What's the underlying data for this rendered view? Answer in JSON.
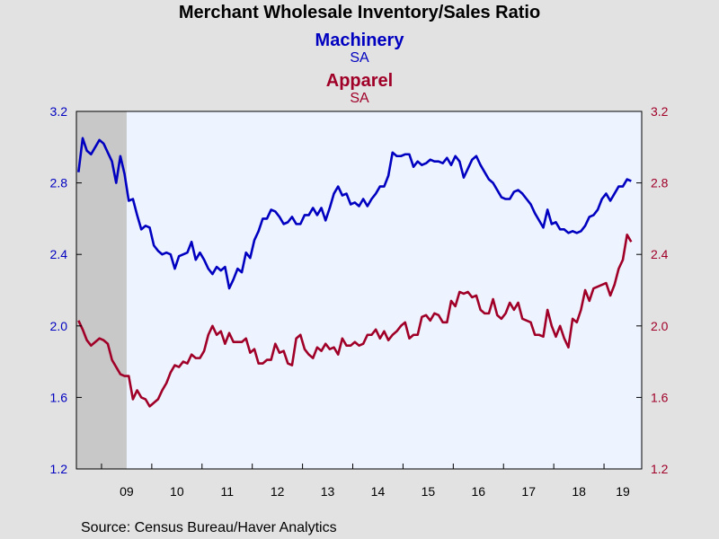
{
  "chart_data": {
    "type": "line",
    "title": "Merchant Wholesale Inventory/Sales Ratio",
    "series": [
      {
        "name": "Machinery",
        "subtitle": "SA",
        "color": "#0000c0",
        "axis": "left",
        "start": "2008-07",
        "values": [
          2.86,
          3.05,
          2.98,
          2.96,
          3.0,
          3.04,
          3.02,
          2.97,
          2.92,
          2.8,
          2.95,
          2.85,
          2.7,
          2.71,
          2.62,
          2.54,
          2.56,
          2.55,
          2.45,
          2.42,
          2.4,
          2.41,
          2.4,
          2.32,
          2.39,
          2.4,
          2.41,
          2.47,
          2.37,
          2.41,
          2.37,
          2.32,
          2.29,
          2.33,
          2.31,
          2.33,
          2.21,
          2.26,
          2.32,
          2.3,
          2.41,
          2.38,
          2.48,
          2.53,
          2.6,
          2.6,
          2.65,
          2.64,
          2.61,
          2.57,
          2.58,
          2.61,
          2.57,
          2.57,
          2.62,
          2.62,
          2.66,
          2.62,
          2.66,
          2.59,
          2.66,
          2.74,
          2.78,
          2.73,
          2.74,
          2.68,
          2.69,
          2.67,
          2.71,
          2.67,
          2.71,
          2.74,
          2.78,
          2.78,
          2.84,
          2.97,
          2.95,
          2.95,
          2.96,
          2.96,
          2.89,
          2.92,
          2.9,
          2.91,
          2.93,
          2.92,
          2.92,
          2.91,
          2.94,
          2.9,
          2.95,
          2.92,
          2.83,
          2.88,
          2.93,
          2.95,
          2.9,
          2.86,
          2.82,
          2.8,
          2.76,
          2.72,
          2.71,
          2.71,
          2.75,
          2.76,
          2.74,
          2.71,
          2.68,
          2.63,
          2.59,
          2.55,
          2.65,
          2.57,
          2.58,
          2.54,
          2.54,
          2.52,
          2.53,
          2.52,
          2.53,
          2.56,
          2.61,
          2.62,
          2.65,
          2.71,
          2.74,
          2.7,
          2.74,
          2.78,
          2.78,
          2.82,
          2.81
        ]
      },
      {
        "name": "Apparel",
        "subtitle": "SA",
        "color": "#a00028",
        "axis": "right",
        "start": "2008-07",
        "values": [
          2.03,
          1.98,
          1.92,
          1.89,
          1.91,
          1.93,
          1.92,
          1.9,
          1.81,
          1.77,
          1.73,
          1.72,
          1.72,
          1.59,
          1.64,
          1.6,
          1.59,
          1.55,
          1.57,
          1.59,
          1.64,
          1.68,
          1.74,
          1.78,
          1.77,
          1.8,
          1.79,
          1.84,
          1.82,
          1.82,
          1.86,
          1.95,
          2.0,
          1.95,
          1.97,
          1.9,
          1.96,
          1.91,
          1.91,
          1.91,
          1.93,
          1.85,
          1.87,
          1.79,
          1.79,
          1.81,
          1.81,
          1.9,
          1.85,
          1.86,
          1.79,
          1.78,
          1.93,
          1.95,
          1.87,
          1.84,
          1.82,
          1.88,
          1.86,
          1.9,
          1.87,
          1.88,
          1.84,
          1.93,
          1.89,
          1.89,
          1.91,
          1.89,
          1.9,
          1.95,
          1.95,
          1.98,
          1.93,
          1.97,
          1.92,
          1.95,
          1.97,
          2.0,
          2.02,
          1.93,
          1.95,
          1.95,
          2.05,
          2.06,
          2.03,
          2.07,
          2.06,
          2.02,
          2.02,
          2.14,
          2.11,
          2.19,
          2.18,
          2.19,
          2.16,
          2.17,
          2.09,
          2.07,
          2.07,
          2.15,
          2.06,
          2.04,
          2.07,
          2.13,
          2.09,
          2.13,
          2.04,
          2.03,
          2.02,
          1.95,
          1.95,
          1.94,
          2.09,
          2.0,
          1.94,
          2.0,
          1.93,
          1.88,
          2.04,
          2.02,
          2.09,
          2.2,
          2.14,
          2.21,
          2.22,
          2.23,
          2.24,
          2.17,
          2.23,
          2.32,
          2.37,
          2.51,
          2.47
        ]
      }
    ],
    "y_left": {
      "min": 1.2,
      "max": 3.2,
      "ticks": [
        "1.2",
        "1.6",
        "2.0",
        "2.4",
        "2.8",
        "3.2"
      ]
    },
    "y_right": {
      "min": 1.2,
      "max": 3.2,
      "ticks": [
        "1.2",
        "1.6",
        "2.0",
        "2.4",
        "2.8",
        "3.2"
      ]
    },
    "x_axis": {
      "start": "2008-07",
      "end": "2019-09",
      "year_labels": [
        "09",
        "10",
        "11",
        "12",
        "13",
        "14",
        "15",
        "16",
        "17",
        "18",
        "19"
      ]
    },
    "recession_shading": [
      {
        "start": "2008-07",
        "end": "2009-06"
      }
    ],
    "grid": false,
    "source": "Source:  Census Bureau/Haver Analytics"
  }
}
